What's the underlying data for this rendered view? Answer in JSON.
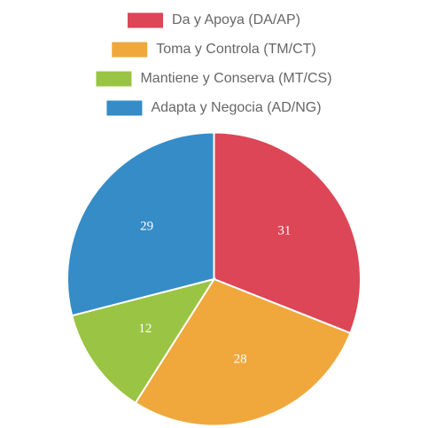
{
  "chart_data": {
    "type": "pie",
    "categories": [
      "Da y Apoya (DA/AP)",
      "Toma y Controla (TM/CT)",
      "Mantiene y Conserva (MT/CS)",
      "Adapta y Negocia (AD/NG)"
    ],
    "values": [
      31,
      28,
      12,
      29
    ],
    "colors": [
      "#dc4656",
      "#f0a83c",
      "#9ac443",
      "#358cc7"
    ],
    "legend": "top"
  }
}
